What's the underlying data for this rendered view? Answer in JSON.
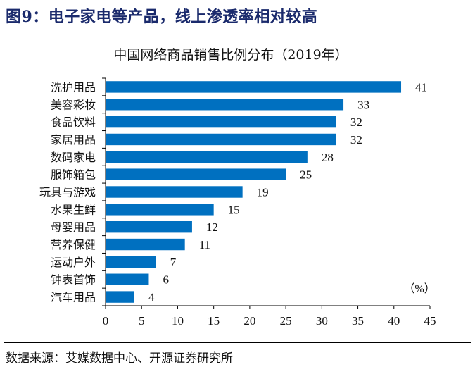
{
  "figure": {
    "title": "图9：电子家电等产品，线上渗透率相对较高",
    "source": "数据来源：艾媒数据中心、开源证券研究所"
  },
  "chart_data": {
    "type": "bar",
    "orientation": "horizontal",
    "title": "中国网络商品销售比例分布（2019年）",
    "unit_label": "（%）",
    "categories": [
      "洗护用品",
      "美容彩妆",
      "食品饮料",
      "家居用品",
      "数码家电",
      "服饰箱包",
      "玩具与游戏",
      "水果生鲜",
      "母婴用品",
      "营养保健",
      "运动户外",
      "钟表首饰",
      "汽车用品"
    ],
    "values": [
      41,
      33,
      32,
      32,
      28,
      25,
      19,
      15,
      12,
      11,
      7,
      6,
      4
    ],
    "data_labels": [
      "41",
      "33",
      "32",
      "32",
      "28",
      "25",
      "19",
      "15",
      "12",
      "11",
      "7",
      "6",
      "4"
    ],
    "xlim": [
      0,
      45
    ],
    "xticks": [
      0,
      5,
      10,
      15,
      20,
      25,
      30,
      35,
      40,
      45
    ],
    "xlabel": "",
    "ylabel": "",
    "grid": false,
    "bar_color": "#0070c0"
  }
}
